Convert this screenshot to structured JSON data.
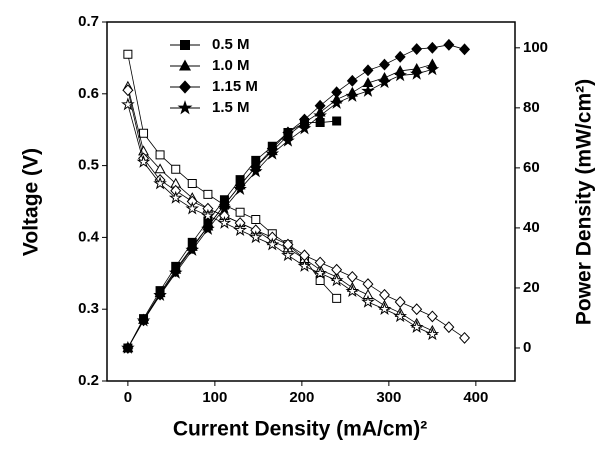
{
  "chart_data": {
    "type": "line",
    "x_label": "Current Density (mA/cm)²",
    "y_label": "Voltage (V)",
    "y2_label": "Power Density (mW/cm²)",
    "x": [
      0,
      18,
      37,
      55,
      74,
      92,
      111,
      129,
      147,
      166,
      184,
      203,
      221,
      240,
      258,
      276,
      295,
      313,
      332,
      350,
      369,
      387
    ],
    "xlim": [
      -24,
      445
    ],
    "xticks": [
      0,
      100,
      200,
      300,
      400
    ],
    "ylim": [
      0.2,
      0.7
    ],
    "yticks": [
      0.2,
      0.3,
      0.4,
      0.5,
      0.6,
      0.7
    ],
    "y2lim": [
      -11,
      108.6
    ],
    "y2ticks": [
      0,
      20,
      40,
      60,
      80,
      100
    ],
    "color": "#000000",
    "series": [
      {
        "name": "0.5 M",
        "marker": "square",
        "voltage": [
          0.655,
          0.545,
          0.515,
          0.495,
          0.475,
          0.46,
          0.445,
          0.435,
          0.425,
          0.405,
          0.39,
          0.37,
          0.34,
          0.315,
          null,
          null,
          null,
          null,
          null,
          null,
          null,
          null
        ],
        "power": [
          0,
          9.8,
          19.1,
          27.2,
          35.2,
          42.3,
          49.4,
          56.1,
          62.5,
          67.2,
          71.8,
          75.1,
          75.1,
          75.6,
          null,
          null,
          null,
          null,
          null,
          null,
          null,
          null
        ]
      },
      {
        "name": "1.0 M",
        "marker": "triangle",
        "voltage": [
          0.61,
          0.52,
          0.495,
          0.475,
          0.455,
          0.44,
          0.43,
          0.42,
          0.41,
          0.395,
          0.385,
          0.37,
          0.355,
          0.345,
          0.33,
          0.32,
          0.305,
          0.295,
          0.28,
          0.27,
          null,
          null
        ],
        "power": [
          0,
          9.4,
          18.3,
          26.1,
          33.7,
          40.5,
          47.7,
          54.2,
          60.3,
          65.6,
          70.8,
          75.1,
          78.5,
          82.8,
          85.1,
          88.3,
          90,
          92.3,
          93,
          94.5,
          null,
          null
        ]
      },
      {
        "name": "1.15 M",
        "marker": "diamond",
        "voltage": [
          0.605,
          0.51,
          0.48,
          0.465,
          0.45,
          0.44,
          0.43,
          0.42,
          0.41,
          0.4,
          0.39,
          0.375,
          0.365,
          0.355,
          0.345,
          0.335,
          0.32,
          0.31,
          0.3,
          0.29,
          0.275,
          0.26
        ],
        "power": [
          0,
          9.2,
          17.8,
          25.6,
          33.3,
          40.5,
          47.7,
          54.2,
          60.3,
          66.4,
          71.8,
          76.1,
          80.7,
          85.2,
          89,
          92.5,
          94.4,
          97,
          99.6,
          100,
          101,
          99.5
        ]
      },
      {
        "name": "1.5 M",
        "marker": "star",
        "voltage": [
          0.585,
          0.505,
          0.475,
          0.455,
          0.44,
          0.43,
          0.42,
          0.41,
          0.4,
          0.39,
          0.375,
          0.36,
          0.35,
          0.34,
          0.325,
          0.31,
          0.3,
          0.29,
          0.275,
          0.265,
          null,
          null
        ],
        "power": [
          0,
          9.1,
          17.6,
          25,
          32.6,
          39.6,
          46.6,
          52.9,
          58.8,
          64.7,
          69,
          73.1,
          77.4,
          81.6,
          83.9,
          85.6,
          88.5,
          90.8,
          91.3,
          92.8,
          null,
          null
        ]
      }
    ]
  }
}
